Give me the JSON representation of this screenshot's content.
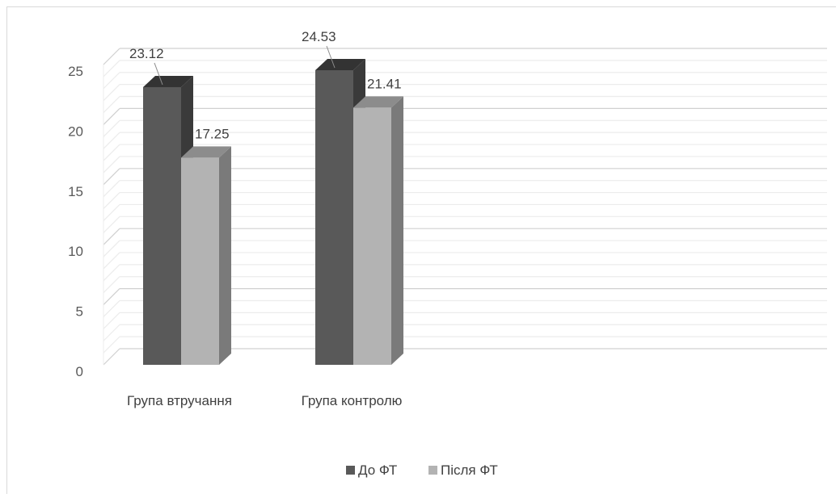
{
  "chart_data": {
    "type": "bar",
    "style": "3d-clustered-column",
    "categories": [
      "Група втручання",
      "Група контролю"
    ],
    "series": [
      {
        "name": "До ФТ",
        "values": [
          23.12,
          24.53
        ],
        "color": "#595959",
        "side_color": "#3a3a3a",
        "top_color": "#333333"
      },
      {
        "name": "Після ФТ",
        "values": [
          17.25,
          21.41
        ],
        "color": "#b3b3b3",
        "side_color": "#7a7a7a",
        "top_color": "#8c8c8c"
      }
    ],
    "ylim": [
      0,
      25
    ],
    "yticks": [
      "0",
      "5",
      "10",
      "15",
      "20",
      "25"
    ],
    "grid": true,
    "legend_position": "bottom",
    "data_labels": true
  }
}
